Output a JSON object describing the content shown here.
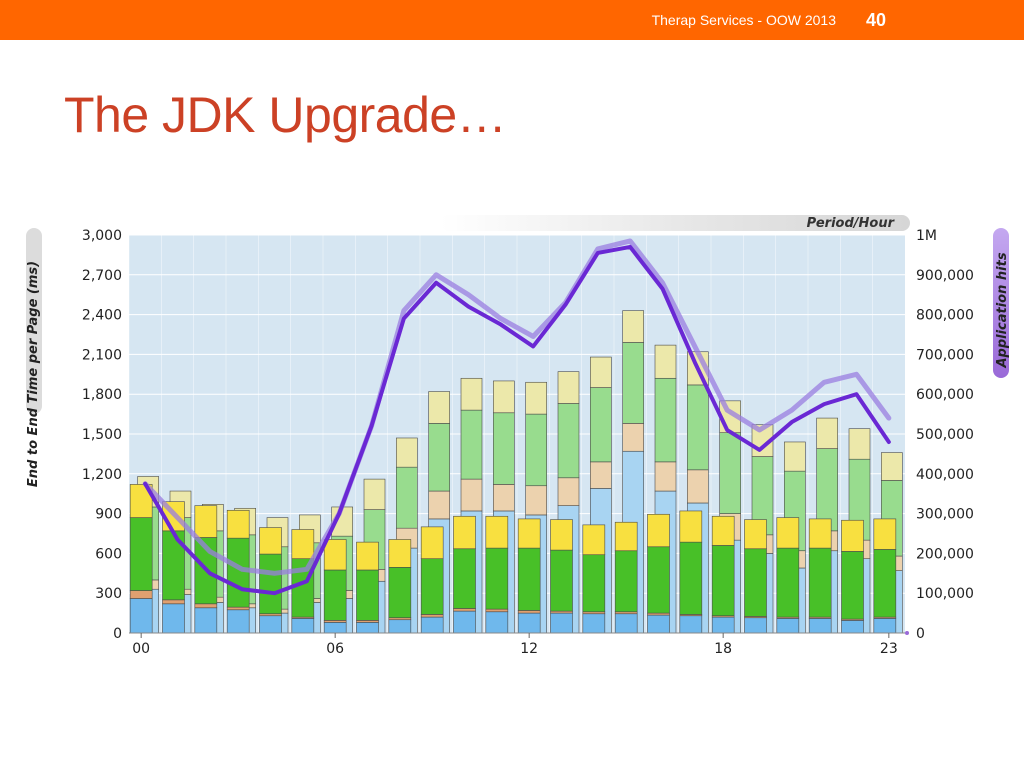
{
  "header": {
    "footer_text": "Therap Services - OOW 2013",
    "slide_number": "40",
    "bar_color": "#ff6600"
  },
  "slide": {
    "title": "The JDK Upgrade…"
  },
  "chart_data": {
    "type": "bar",
    "title": "Period/Hour",
    "xlabel": "",
    "ylabel": "End to End Time per Page (ms)",
    "ylabel_right": "Application hits",
    "ylim": [
      0,
      3000
    ],
    "ylim_right": [
      0,
      1000000
    ],
    "yticks": [
      0,
      300,
      600,
      900,
      1200,
      1500,
      1800,
      2100,
      2400,
      2700,
      3000
    ],
    "yticks_labels": [
      "0",
      "300",
      "600",
      "900",
      "1,200",
      "1,500",
      "1,800",
      "2,100",
      "2,400",
      "2,700",
      "3,000"
    ],
    "yticks_right_labels": [
      "0",
      "100,000",
      "200,000",
      "300,000",
      "400,000",
      "500,000",
      "600,000",
      "700,000",
      "800,000",
      "900,000",
      "1M"
    ],
    "xtick_labels": [
      {
        "hour": 0,
        "label": "00"
      },
      {
        "hour": 6,
        "label": "06"
      },
      {
        "hour": 12,
        "label": "12"
      },
      {
        "hour": 18,
        "label": "18"
      },
      {
        "hour": 23,
        "label": "23"
      }
    ],
    "hours": [
      0,
      1,
      2,
      3,
      4,
      5,
      6,
      7,
      8,
      9,
      10,
      11,
      12,
      13,
      14,
      15,
      16,
      17,
      18,
      19,
      20,
      21,
      22,
      23
    ],
    "segment_colors": {
      "new": [
        "#6fb8ec",
        "#e0a070",
        "#48c028",
        "#f8e040"
      ],
      "old": [
        "#a8d4f2",
        "#ecd2ae",
        "#98dc8e",
        "#ece8aa"
      ]
    },
    "new_stacks": [
      [
        260,
        60,
        550,
        250
      ],
      [
        220,
        30,
        520,
        220
      ],
      [
        190,
        30,
        500,
        240
      ],
      [
        175,
        20,
        520,
        210
      ],
      [
        130,
        15,
        450,
        200
      ],
      [
        110,
        10,
        440,
        220
      ],
      [
        80,
        15,
        380,
        230
      ],
      [
        80,
        15,
        380,
        210
      ],
      [
        100,
        15,
        380,
        210
      ],
      [
        120,
        20,
        420,
        240
      ],
      [
        165,
        20,
        450,
        245
      ],
      [
        160,
        20,
        460,
        240
      ],
      [
        150,
        20,
        470,
        220
      ],
      [
        150,
        15,
        460,
        230
      ],
      [
        145,
        15,
        430,
        225
      ],
      [
        145,
        15,
        460,
        215
      ],
      [
        135,
        15,
        500,
        245
      ],
      [
        130,
        10,
        545,
        235
      ],
      [
        120,
        10,
        530,
        220
      ],
      [
        115,
        10,
        510,
        220
      ],
      [
        110,
        10,
        520,
        230
      ],
      [
        110,
        10,
        520,
        220
      ],
      [
        95,
        10,
        510,
        235
      ],
      [
        110,
        10,
        510,
        230
      ]
    ],
    "old_stacks": [
      [
        330,
        70,
        550,
        230
      ],
      [
        290,
        40,
        540,
        200
      ],
      [
        230,
        40,
        500,
        200
      ],
      [
        190,
        30,
        520,
        200
      ],
      [
        150,
        30,
        470,
        220
      ],
      [
        230,
        30,
        420,
        210
      ],
      [
        260,
        60,
        410,
        220
      ],
      [
        390,
        90,
        450,
        230
      ],
      [
        640,
        150,
        460,
        220
      ],
      [
        860,
        210,
        510,
        240
      ],
      [
        920,
        240,
        520,
        240
      ],
      [
        920,
        200,
        540,
        240
      ],
      [
        890,
        220,
        540,
        240
      ],
      [
        960,
        210,
        560,
        240
      ],
      [
        1090,
        200,
        560,
        230
      ],
      [
        1370,
        210,
        610,
        240
      ],
      [
        1070,
        220,
        630,
        250
      ],
      [
        980,
        250,
        640,
        250
      ],
      [
        700,
        200,
        610,
        240
      ],
      [
        600,
        140,
        590,
        240
      ],
      [
        490,
        130,
        600,
        220
      ],
      [
        620,
        150,
        620,
        230
      ],
      [
        560,
        140,
        610,
        230
      ],
      [
        470,
        110,
        570,
        210
      ]
    ],
    "series": [
      {
        "values": [
          375000,
          290000,
          205000,
          160000,
          150000,
          160000,
          300000,
          520000,
          810000,
          900000,
          850000,
          790000,
          745000,
          830000,
          965000,
          985000,
          880000,
          720000,
          560000,
          510000,
          560000,
          630000,
          650000,
          540000
        ]
      },
      {
        "values": [
          375000,
          235000,
          150000,
          110000,
          100000,
          130000,
          300000,
          520000,
          790000,
          880000,
          820000,
          775000,
          720000,
          825000,
          955000,
          970000,
          865000,
          680000,
          510000,
          460000,
          530000,
          575000,
          600000,
          480000
        ]
      }
    ],
    "line_colors": [
      "#9a7ee0",
      "#6a28d4"
    ],
    "accent_color": "#9a6ad8",
    "plot_background": "#d6e6f2",
    "grid": true
  }
}
